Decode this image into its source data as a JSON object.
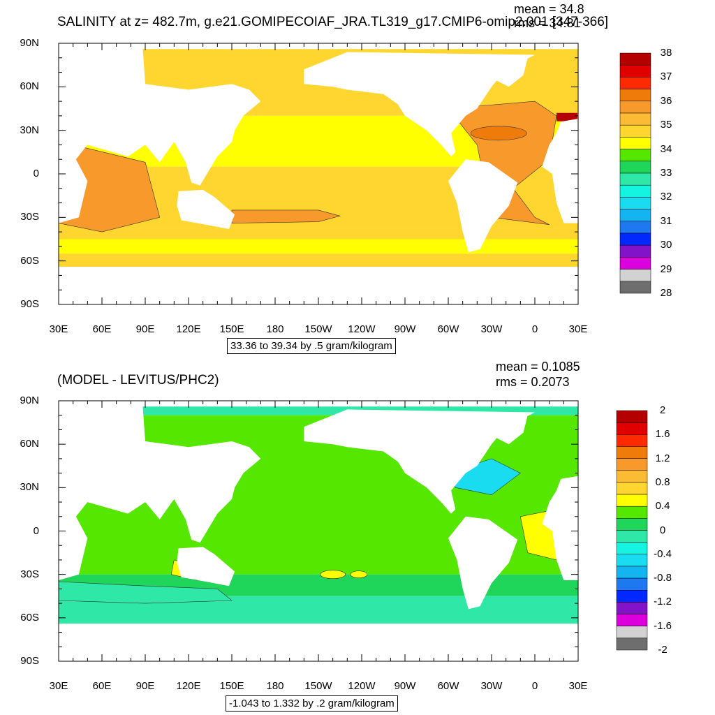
{
  "panels": [
    {
      "id": "salinity",
      "title": "SALINITY at z= 482.7m, g.e21.GOMIPECOIAF_JRA.TL319_g17.CMIP6-omip2.001 [347-366]",
      "stats": {
        "mean": "mean = 34.8",
        "rms": "rms = 34.81"
      },
      "range_label": "33.36 to 39.34 by .5 gram/kilogram",
      "colorbar": {
        "labels": [
          "38",
          "37",
          "36",
          "35",
          "34",
          "33",
          "32",
          "31",
          "30",
          "29",
          "28"
        ],
        "colors": [
          "#b40000",
          "#e00000",
          "#ff2a00",
          "#ef7b0b",
          "#f7992b",
          "#fbbb35",
          "#ffd630",
          "#ffff00",
          "#55e700",
          "#1fd65a",
          "#2fe8a8",
          "#15f4e0",
          "#19dcf0",
          "#14b4f0",
          "#1e78f0",
          "#0028ff",
          "#8213c8",
          "#dc00dc",
          "#d2d2d2",
          "#6e6e6e"
        ]
      }
    },
    {
      "id": "difference",
      "title": "(MODEL - LEVITUS/PHC2)",
      "stats": {
        "mean": "mean = 0.1085",
        "rms": "rms = 0.2073"
      },
      "range_label": "-1.043 to 1.332 by .2 gram/kilogram",
      "colorbar": {
        "labels": [
          "2",
          "1.6",
          "1.2",
          "0.8",
          "0.4",
          "0",
          "-0.4",
          "-0.8",
          "-1.2",
          "-1.6",
          "-2"
        ],
        "colors": [
          "#b40000",
          "#e00000",
          "#ff2a00",
          "#ef7b0b",
          "#f7992b",
          "#fbbb35",
          "#ffd630",
          "#ffff00",
          "#55e700",
          "#1fd65a",
          "#2fe8a8",
          "#15f4e0",
          "#19dcf0",
          "#14b4f0",
          "#1e78f0",
          "#0028ff",
          "#8213c8",
          "#dc00dc",
          "#d2d2d2",
          "#6e6e6e"
        ]
      }
    }
  ],
  "axes": {
    "lat_labels": [
      "90N",
      "60N",
      "30N",
      "0",
      "30S",
      "60S",
      "90S"
    ],
    "lon_labels": [
      "30E",
      "60E",
      "90E",
      "120E",
      "150E",
      "180",
      "150W",
      "120W",
      "90W",
      "60W",
      "30W",
      "0",
      "30E"
    ]
  }
}
